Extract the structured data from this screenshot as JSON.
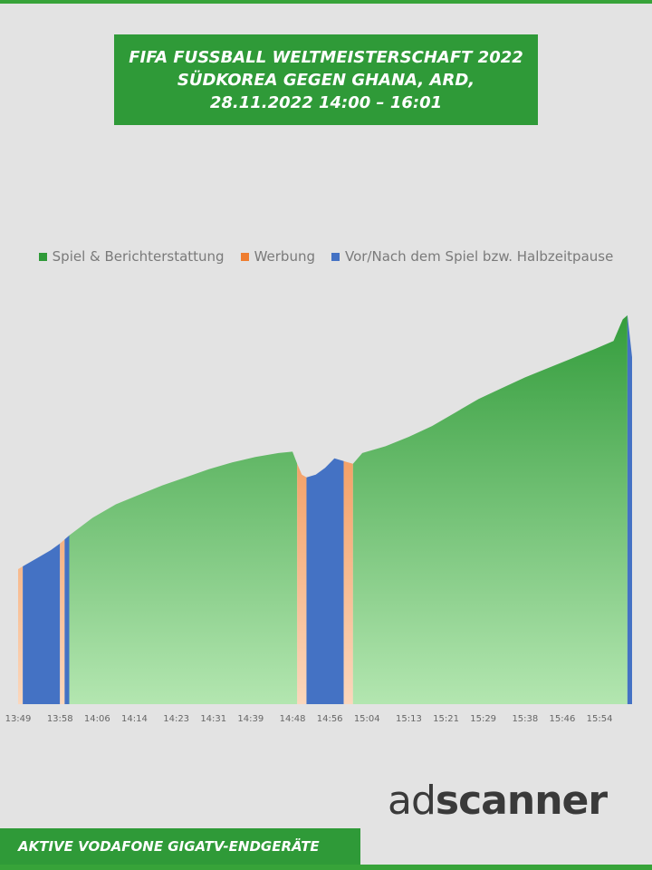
{
  "title": {
    "line1": "FIFA FUSSBALL WELTMEISTERSCHAFT 2022",
    "line2": "SÜDKOREA GEGEN GHANA, ARD,",
    "line3": "28.11.2022  14:00 – 16:01"
  },
  "footer": {
    "text": "AKTIVE VODAFONE GIGATV-ENDGERÄTE"
  },
  "logo": {
    "part1": "ad",
    "part2": "scanner"
  },
  "colors": {
    "green": "#2f9a38",
    "orange": "#ef7d2f",
    "blue": "#4472c4",
    "background": "#e3e3e3"
  },
  "chart_data": {
    "type": "area",
    "title": "FIFA FUSSBALL WELTMEISTERSCHAFT 2022 SÜDKOREA GEGEN GHANA, ARD, 28.11.2022 14:00 – 16:01",
    "xlabel": "",
    "ylabel": "",
    "x_ticks": [
      "13:49",
      "13:58",
      "14:06",
      "14:14",
      "14:23",
      "14:31",
      "14:39",
      "14:48",
      "14:56",
      "15:04",
      "15:13",
      "15:21",
      "15:29",
      "15:38",
      "15:46",
      "15:54"
    ],
    "x_range": [
      "13:49",
      "16:01"
    ],
    "y_axis_shown": false,
    "grid": false,
    "legend_position": "top",
    "legend": [
      {
        "name": "Spiel & Berichterstattung",
        "color": "#2f9a38"
      },
      {
        "name": "Werbung",
        "color": "#ef7d2f"
      },
      {
        "name": "Vor/Nach dem Spiel bzw. Halbzeitpause",
        "color": "#4472c4"
      }
    ],
    "segments": [
      {
        "series": "Werbung",
        "start": "13:49",
        "end": "13:50"
      },
      {
        "series": "Vor/Nach dem Spiel bzw. Halbzeitpause",
        "start": "13:50",
        "end": "13:58"
      },
      {
        "series": "Werbung",
        "start": "13:58",
        "end": "13:59"
      },
      {
        "series": "Vor/Nach dem Spiel bzw. Halbzeitpause",
        "start": "13:59",
        "end": "14:00"
      },
      {
        "series": "Spiel & Berichterstattung",
        "start": "14:00",
        "end": "14:49"
      },
      {
        "series": "Werbung",
        "start": "14:49",
        "end": "14:51"
      },
      {
        "series": "Vor/Nach dem Spiel bzw. Halbzeitpause",
        "start": "14:51",
        "end": "14:59"
      },
      {
        "series": "Werbung",
        "start": "14:59",
        "end": "15:01"
      },
      {
        "series": "Spiel & Berichterstattung",
        "start": "15:01",
        "end": "16:00"
      },
      {
        "series": "Vor/Nach dem Spiel bzw. Halbzeitpause",
        "start": "16:00",
        "end": "16:01"
      }
    ],
    "series": [
      {
        "name": "Aktive Vodafone GigaTV-Endgeräte (relativ)",
        "x": [
          "13:49",
          "13:50",
          "13:51",
          "13:53",
          "13:56",
          "13:58",
          "14:00",
          "14:05",
          "14:10",
          "14:15",
          "14:20",
          "14:25",
          "14:30",
          "14:35",
          "14:40",
          "14:45",
          "14:48",
          "14:49",
          "14:50",
          "14:51",
          "14:53",
          "14:55",
          "14:57",
          "14:59",
          "15:01",
          "15:03",
          "15:08",
          "15:13",
          "15:18",
          "15:23",
          "15:28",
          "15:33",
          "15:38",
          "15:43",
          "15:48",
          "15:53",
          "15:57",
          "15:58",
          "15:59",
          "16:00",
          "16:01"
        ],
        "y": [
          100,
          102,
          104,
          108,
          114,
          119,
          125,
          138,
          148,
          155,
          162,
          168,
          174,
          179,
          183,
          186,
          187,
          178,
          170,
          168,
          170,
          175,
          182,
          180,
          178,
          186,
          191,
          198,
          206,
          216,
          226,
          234,
          242,
          249,
          256,
          263,
          269,
          277,
          285,
          288,
          257
        ]
      }
    ],
    "ylim": [
      0,
      300
    ]
  }
}
